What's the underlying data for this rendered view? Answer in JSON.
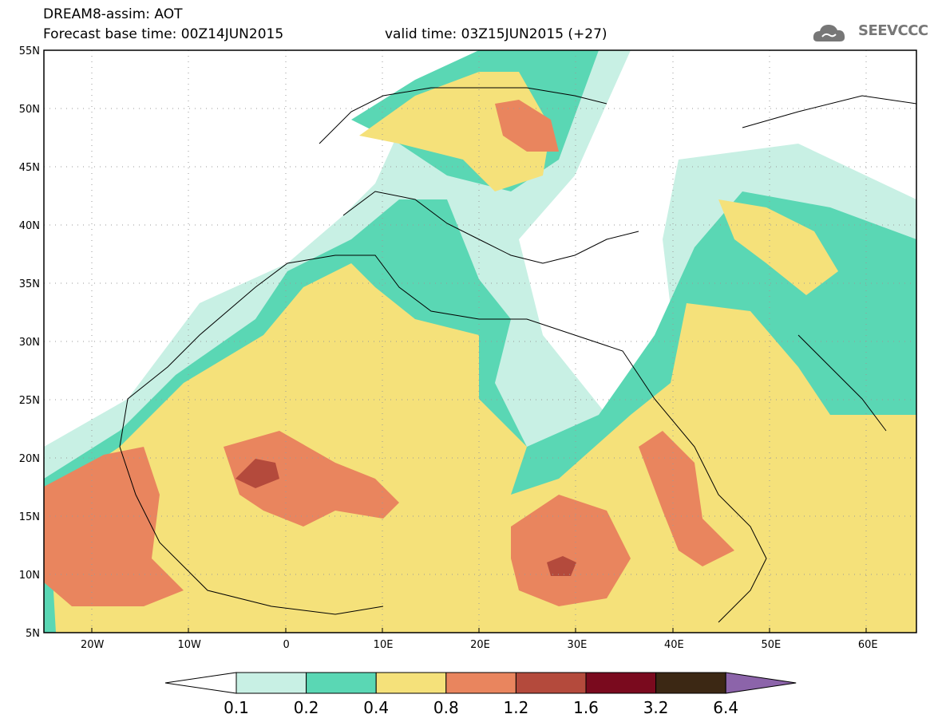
{
  "header": {
    "title": "DREAM8-assim: AOT",
    "base_time": "Forecast base time: 00Z14JUN2015",
    "valid_time": "valid time: 03Z15JUN2015 (+27)"
  },
  "logo": {
    "text": "SEEVCCC",
    "icon": "cloud-logo-icon"
  },
  "map": {
    "lat_labels": [
      "55N",
      "50N",
      "45N",
      "40N",
      "35N",
      "30N",
      "25N",
      "20N",
      "15N",
      "10N",
      "5N"
    ],
    "lon_labels": [
      "20W",
      "10W",
      "0",
      "10E",
      "20E",
      "30E",
      "40E",
      "50E",
      "60E"
    ],
    "lat_range": [
      5,
      55
    ],
    "lon_range": [
      -25,
      65
    ],
    "grid": "dotted"
  },
  "colorbar": {
    "labels": [
      "0.1",
      "0.2",
      "0.4",
      "0.8",
      "1.2",
      "1.6",
      "3.2",
      "6.4"
    ],
    "colors": [
      "#ffffff",
      "#c8f0e4",
      "#5ad7b4",
      "#f5e17a",
      "#e9855e",
      "#b44a3c",
      "#7a0a1e",
      "#3c2814",
      "#8c64aa"
    ]
  }
}
